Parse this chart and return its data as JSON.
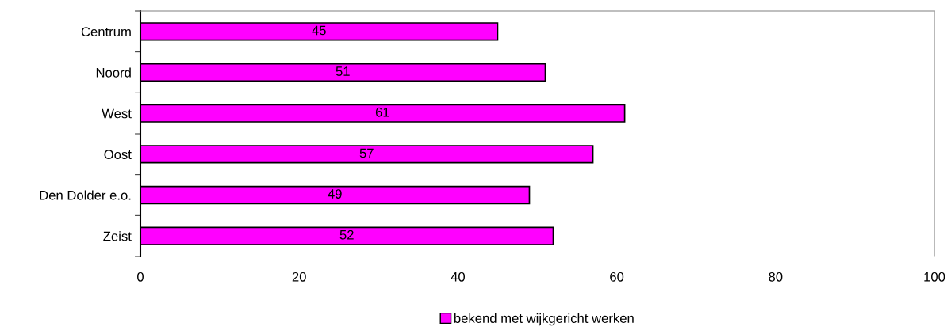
{
  "chart_data": {
    "type": "bar",
    "orientation": "horizontal",
    "categories": [
      "Centrum",
      "Noord",
      "West",
      "Oost",
      "Den Dolder e.o.",
      "Zeist"
    ],
    "series": [
      {
        "name": "bekend met wijkgericht werken",
        "color": "#ff00ff",
        "values": [
          45,
          51,
          61,
          57,
          49,
          52
        ]
      }
    ],
    "xlim": [
      0,
      100
    ],
    "xticks": [
      0,
      20,
      40,
      60,
      80,
      100
    ],
    "data_labels": true,
    "grid": false,
    "legend": "bottom"
  }
}
